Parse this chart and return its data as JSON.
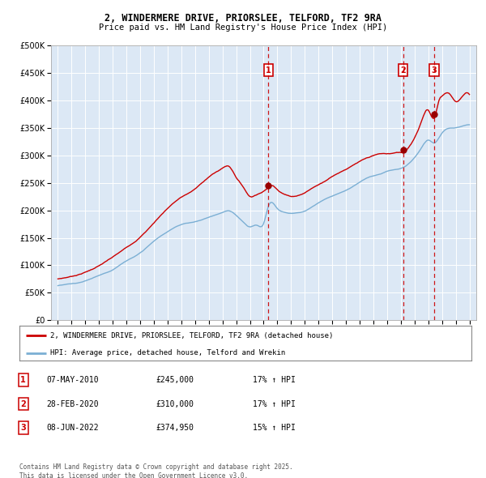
{
  "title_line1": "2, WINDERMERE DRIVE, PRIORSLEE, TELFORD, TF2 9RA",
  "title_line2": "Price paid vs. HM Land Registry's House Price Index (HPI)",
  "legend_label_red": "2, WINDERMERE DRIVE, PRIORSLEE, TELFORD, TF2 9RA (detached house)",
  "legend_label_blue": "HPI: Average price, detached house, Telford and Wrekin",
  "table_rows": [
    {
      "num": "1",
      "date": "07-MAY-2010",
      "price": "£245,000",
      "change": "17% ↑ HPI"
    },
    {
      "num": "2",
      "date": "28-FEB-2020",
      "price": "£310,000",
      "change": "17% ↑ HPI"
    },
    {
      "num": "3",
      "date": "08-JUN-2022",
      "price": "£374,950",
      "change": "15% ↑ HPI"
    }
  ],
  "footnote": "Contains HM Land Registry data © Crown copyright and database right 2025.\nThis data is licensed under the Open Government Licence v3.0.",
  "sale_dates_decimal": [
    2010.35,
    2020.16,
    2022.44
  ],
  "sale_prices": [
    245000,
    310000,
    374950
  ],
  "vline_color": "#cc0000",
  "sale_point_color": "#990000",
  "red_line_color": "#cc0000",
  "blue_line_color": "#7bafd4",
  "bg_color": "#dce8f5",
  "ylim": [
    0,
    500000
  ],
  "yticks": [
    0,
    50000,
    100000,
    150000,
    200000,
    250000,
    300000,
    350000,
    400000,
    450000,
    500000
  ],
  "xlim_start": 1994.5,
  "xlim_end": 2025.5,
  "xticks": [
    1995,
    1996,
    1997,
    1998,
    1999,
    2000,
    2001,
    2002,
    2003,
    2004,
    2005,
    2006,
    2007,
    2008,
    2009,
    2010,
    2011,
    2012,
    2013,
    2014,
    2015,
    2016,
    2017,
    2018,
    2019,
    2020,
    2021,
    2022,
    2023,
    2024,
    2025
  ]
}
